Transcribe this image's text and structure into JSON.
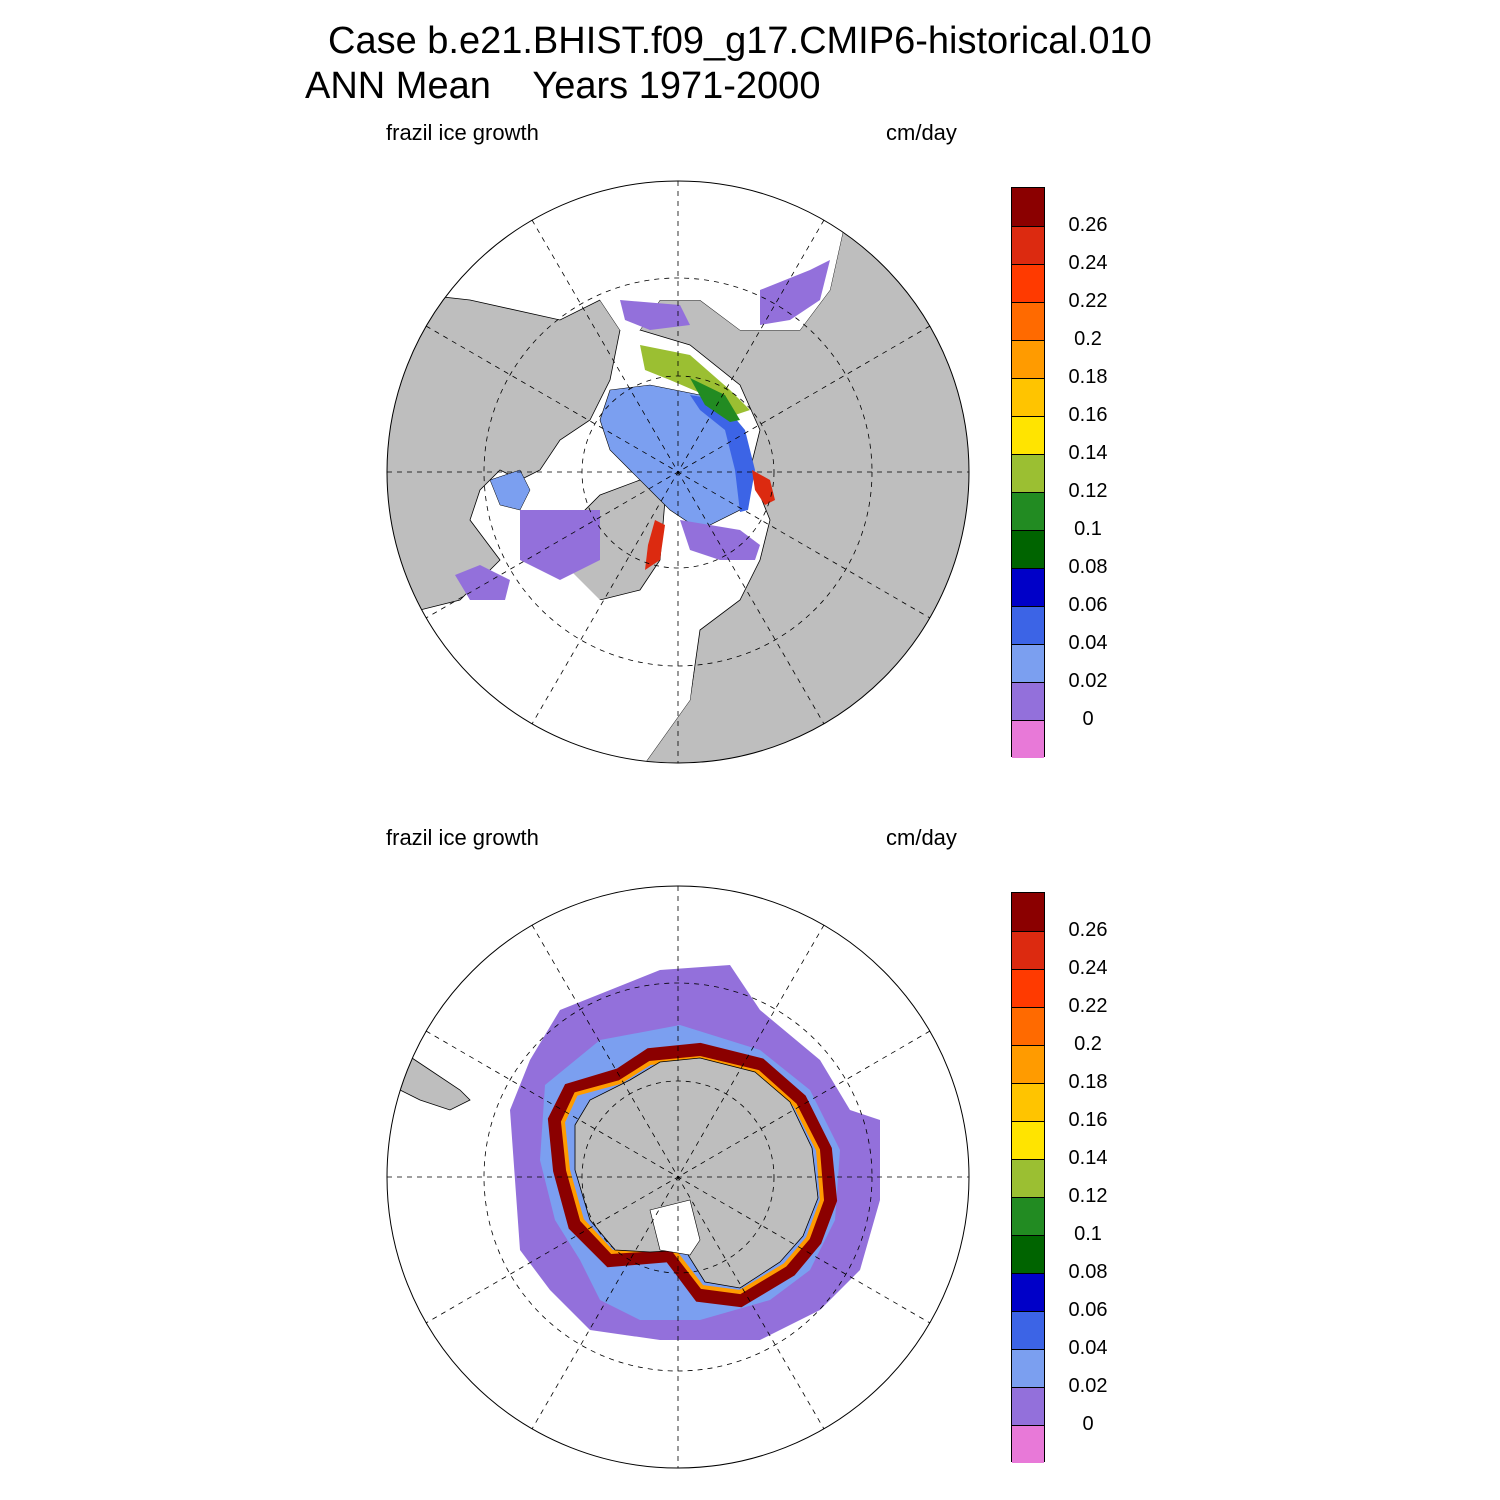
{
  "title": {
    "line1": "Case b.e21.BHIST.f09_g17.CMIP6-historical.010",
    "line2": "ANN Mean    Years 1971-2000"
  },
  "colorbar": {
    "colors": [
      "#e879d8",
      "#9370db",
      "#7b9ff0",
      "#3c64e6",
      "#0000c8",
      "#006400",
      "#228b22",
      "#9bbf32",
      "#ffe400",
      "#ffc400",
      "#ff9b00",
      "#ff6a00",
      "#ff3a00",
      "#dc2a10",
      "#8b0000"
    ],
    "labels": [
      "0",
      "0.02",
      "0.04",
      "0.06",
      "0.08",
      "0.1",
      "0.12",
      "0.14",
      "0.16",
      "0.18",
      "0.2",
      "0.22",
      "0.24",
      "0.26"
    ]
  },
  "panels": [
    {
      "id": "north",
      "variable_label": "frazil ice growth",
      "units_label": "cm/day",
      "hemisphere": "north"
    },
    {
      "id": "south",
      "variable_label": "frazil ice growth",
      "units_label": "cm/day",
      "hemisphere": "south"
    }
  ]
}
